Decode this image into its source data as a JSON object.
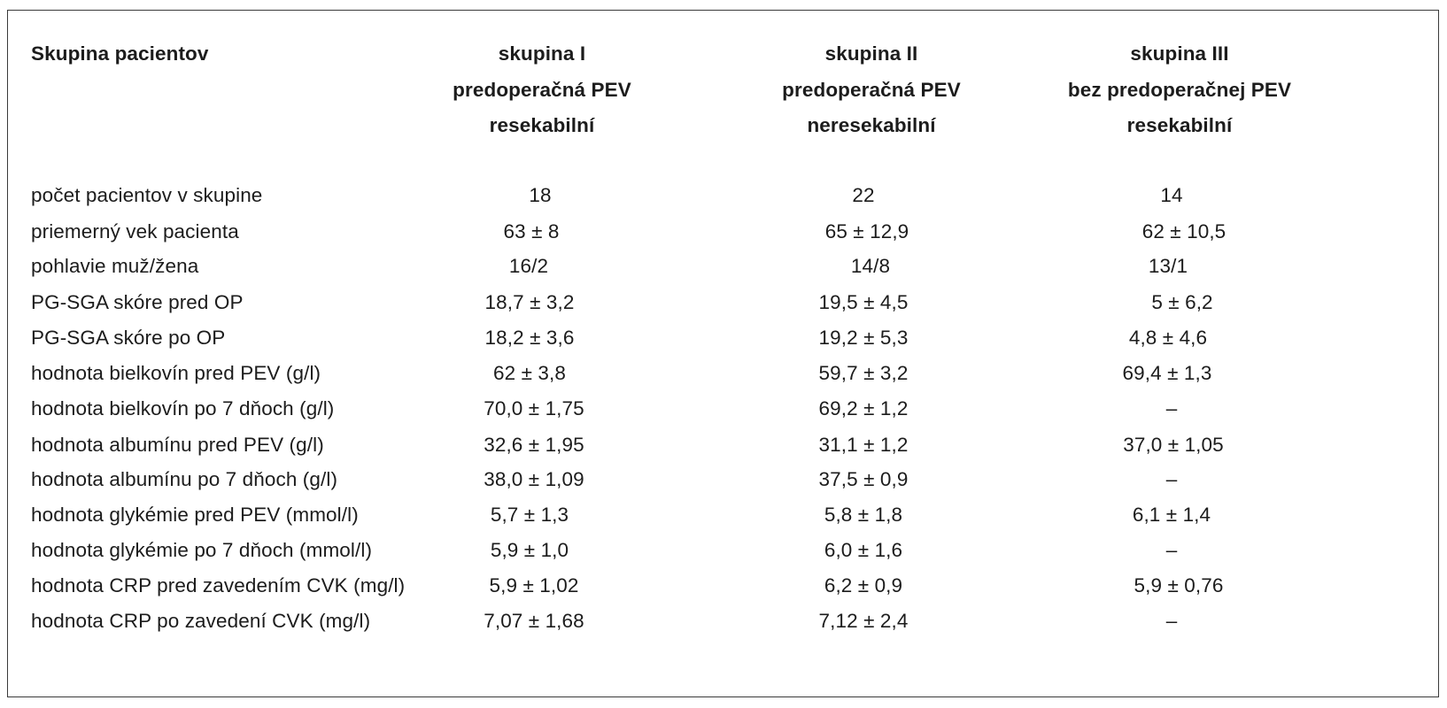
{
  "table": {
    "header": {
      "first": "Skupina pacientov",
      "groups": [
        {
          "lines": [
            "skupina I",
            "predoperačná PEV",
            "resekabilní"
          ]
        },
        {
          "lines": [
            "skupina II",
            "predoperačná PEV",
            "neresekabilní"
          ]
        },
        {
          "lines": [
            "skupina III",
            "bez predoperačnej PEV",
            "resekabilní"
          ]
        }
      ]
    },
    "rows": [
      {
        "label": "počet pacientov v skupine",
        "values": [
          "18",
          "22",
          "14"
        ]
      },
      {
        "label": "priemerný vek pacienta",
        "values": [
          "63 ± 8",
          "65 ± 12,9",
          "62 ± 10,5"
        ]
      },
      {
        "label": "pohlavie muž/žena",
        "values": [
          "16/2",
          "14/8",
          "13/1"
        ]
      },
      {
        "label": "PG-SGA skóre pred OP",
        "values": [
          "18,7 ± 3,2",
          "19,5 ± 4,5",
          "5 ± 6,2"
        ]
      },
      {
        "label": "PG-SGA skóre po OP",
        "values": [
          "18,2 ± 3,6",
          "19,2 ± 5,3",
          "4,8 ± 4,6"
        ]
      },
      {
        "label": "hodnota bielkovín pred PEV (g/l)",
        "values": [
          "62 ± 3,8",
          "59,7 ± 3,2",
          "69,4 ± 1,3"
        ]
      },
      {
        "label": "hodnota bielkovín po 7 dňoch (g/l)",
        "values": [
          "70,0 ± 1,75",
          "69,2 ± 1,2",
          "–"
        ]
      },
      {
        "label": "hodnota albumínu pred PEV (g/l)",
        "values": [
          "32,6 ± 1,95",
          "31,1 ± 1,2",
          "37,0 ± 1,05"
        ]
      },
      {
        "label": "hodnota albumínu po 7 dňoch (g/l)",
        "values": [
          "38,0 ± 1,09",
          "37,5 ± 0,9",
          "–"
        ]
      },
      {
        "label": "hodnota glykémie pred PEV (mmol/l)",
        "values": [
          "5,7 ± 1,3",
          "5,8 ± 1,8",
          "6,1 ± 1,4"
        ]
      },
      {
        "label": "hodnota glykémie po 7 dňoch (mmol/l)",
        "values": [
          "5,9 ± 1,0",
          "6,0 ± 1,6",
          "–"
        ]
      },
      {
        "label": "hodnota CRP pred zavedením CVK (mg/l)",
        "values": [
          "5,9 ± 1,02",
          "6,2 ± 0,9",
          "5,9 ± 0,76"
        ]
      },
      {
        "label": "hodnota CRP po zavedení CVK (mg/l)",
        "values": [
          "7,07 ± 1,68",
          "7,12 ± 2,4",
          "–"
        ]
      }
    ]
  }
}
